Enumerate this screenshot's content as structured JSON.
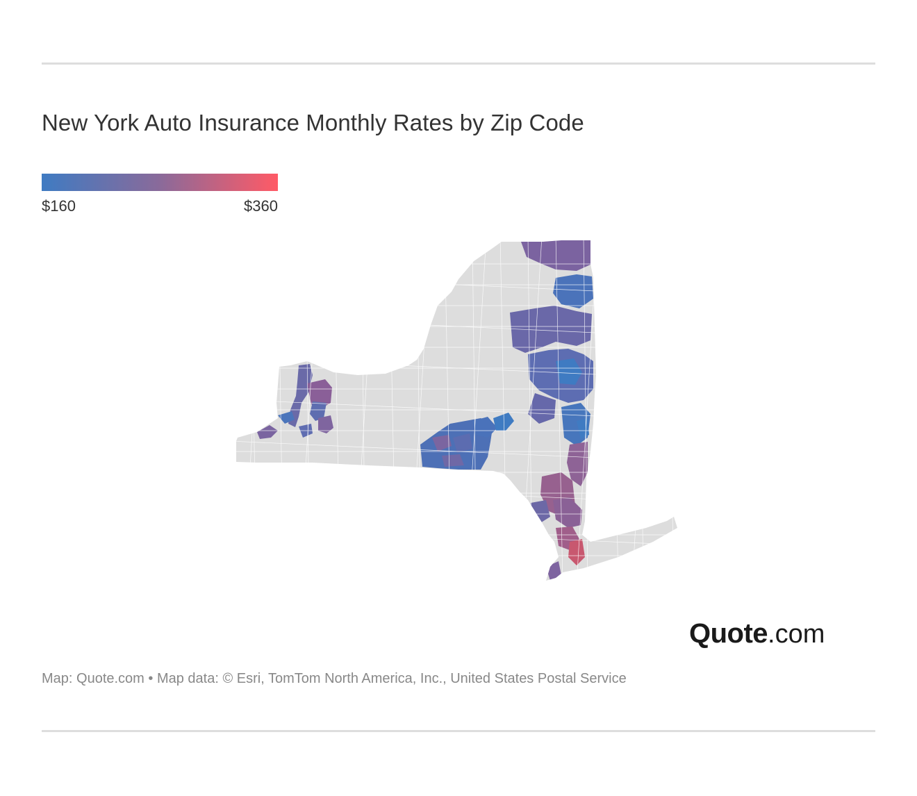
{
  "title": "New York Auto Insurance Monthly Rates by Zip Code",
  "legend": {
    "min_label": "$160",
    "max_label": "$360",
    "color_low": "#3f7bc2",
    "color_mid": "#8a6a9a",
    "color_high": "#ff5a66"
  },
  "map": {
    "region": "New York",
    "no_data_color": "#dddddd",
    "border_color": "#ffffff"
  },
  "logo": {
    "strong": "Quote",
    "light": ".com"
  },
  "credit": "Map: Quote.com • Map data: © Esri, TomTom North America, Inc., United States Postal Service"
}
